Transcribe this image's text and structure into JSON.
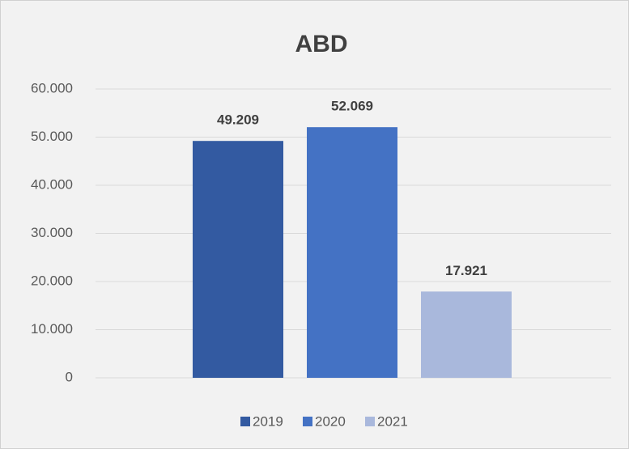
{
  "chart_data": {
    "type": "bar",
    "title": "ABD",
    "series": [
      {
        "name": "2019",
        "color": "#335aa1",
        "values": [
          49209
        ],
        "value_labels": [
          "49.209"
        ]
      },
      {
        "name": "2020",
        "color": "#4472c4",
        "values": [
          52069
        ],
        "value_labels": [
          "52.069"
        ]
      },
      {
        "name": "2021",
        "color": "#a9b8dc",
        "values": [
          17921
        ],
        "value_labels": [
          "17.921"
        ]
      }
    ],
    "ylim": [
      0,
      60000
    ],
    "yticks": [
      0,
      {
        "value": 10000,
        "label": "10.000"
      },
      {
        "value": 20000,
        "label": "20.000"
      },
      {
        "value": 30000,
        "label": "30.000"
      },
      {
        "value": 40000,
        "label": "40.000"
      },
      {
        "value": 50000,
        "label": "50.000"
      },
      {
        "value": 60000,
        "label": "60.000"
      }
    ],
    "grid": true,
    "legend": "bottom"
  }
}
